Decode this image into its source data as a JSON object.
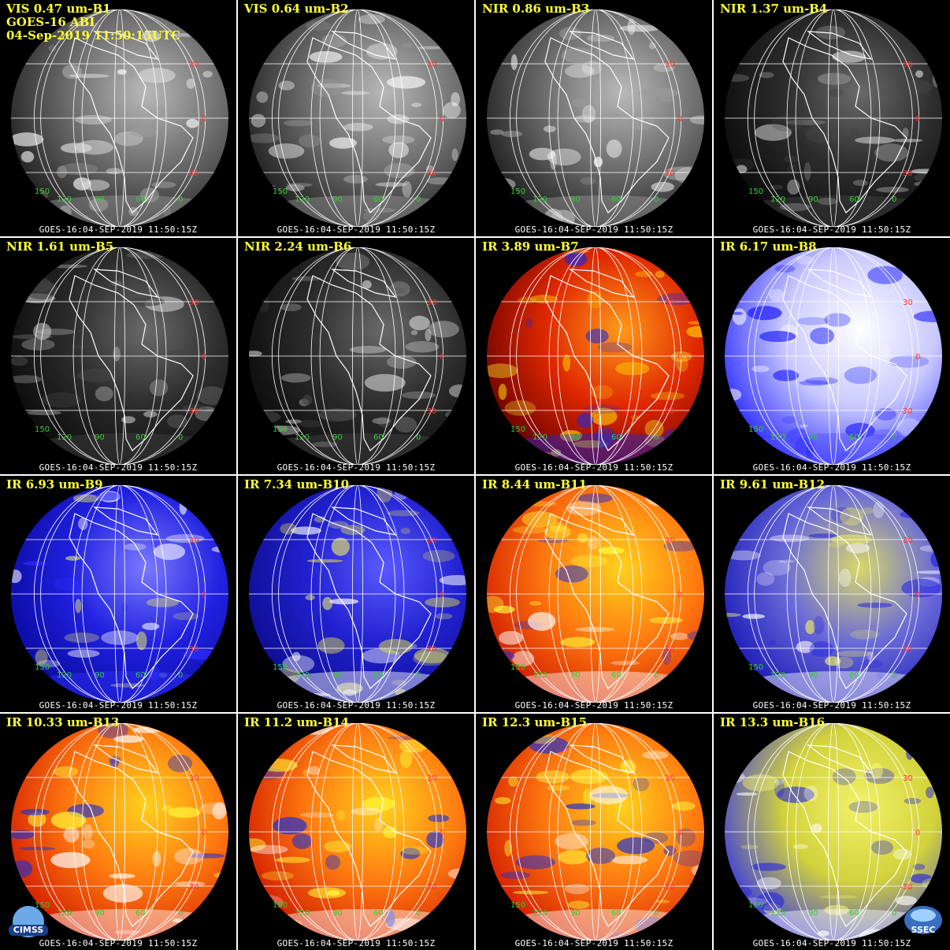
{
  "header": {
    "line2": "GOES-16 ABI",
    "line3": "04-Sep-2019 11:50:15UTC"
  },
  "footer_text": "GOES-16:04-SEP-2019 11:50:15Z",
  "lat_labels": [
    "30",
    "0",
    "-30"
  ],
  "lon_labels": [
    "150",
    "120",
    "90",
    "60",
    "0"
  ],
  "colors": {
    "label": "#ffff33",
    "lat": "#ff3333",
    "lon": "#33cc33"
  },
  "logos": {
    "left": "CIMSS",
    "right": "SSEC"
  },
  "panels": [
    {
      "label": "VIS 0.47 um-B1",
      "style": "gray"
    },
    {
      "label": "VIS 0.64 um-B2",
      "style": "gray"
    },
    {
      "label": "NIR 0.86 um-B3",
      "style": "gray"
    },
    {
      "label": "NIR 1.37 um-B4",
      "style": "dark"
    },
    {
      "label": "NIR 1.61 um-B5",
      "style": "dark"
    },
    {
      "label": "NIR 2.24 um-B6",
      "style": "dark"
    },
    {
      "label": "IR 3.89 um-B7",
      "style": "hot"
    },
    {
      "label": "IR 6.17 um-B8",
      "style": "wv-white"
    },
    {
      "label": "IR 6.93 um-B9",
      "style": "wv-blue"
    },
    {
      "label": "IR 7.34 um-B10",
      "style": "wv-yellow"
    },
    {
      "label": "IR 8.44 um-B11",
      "style": "warm"
    },
    {
      "label": "IR 9.61 um-B12",
      "style": "ozone"
    },
    {
      "label": "IR 10.33 um-B13",
      "style": "warm"
    },
    {
      "label": "IR 11.2 um-B14",
      "style": "warm"
    },
    {
      "label": "IR 12.3 um-B15",
      "style": "warm"
    },
    {
      "label": "IR 13.3 um-B16",
      "style": "co2"
    }
  ]
}
